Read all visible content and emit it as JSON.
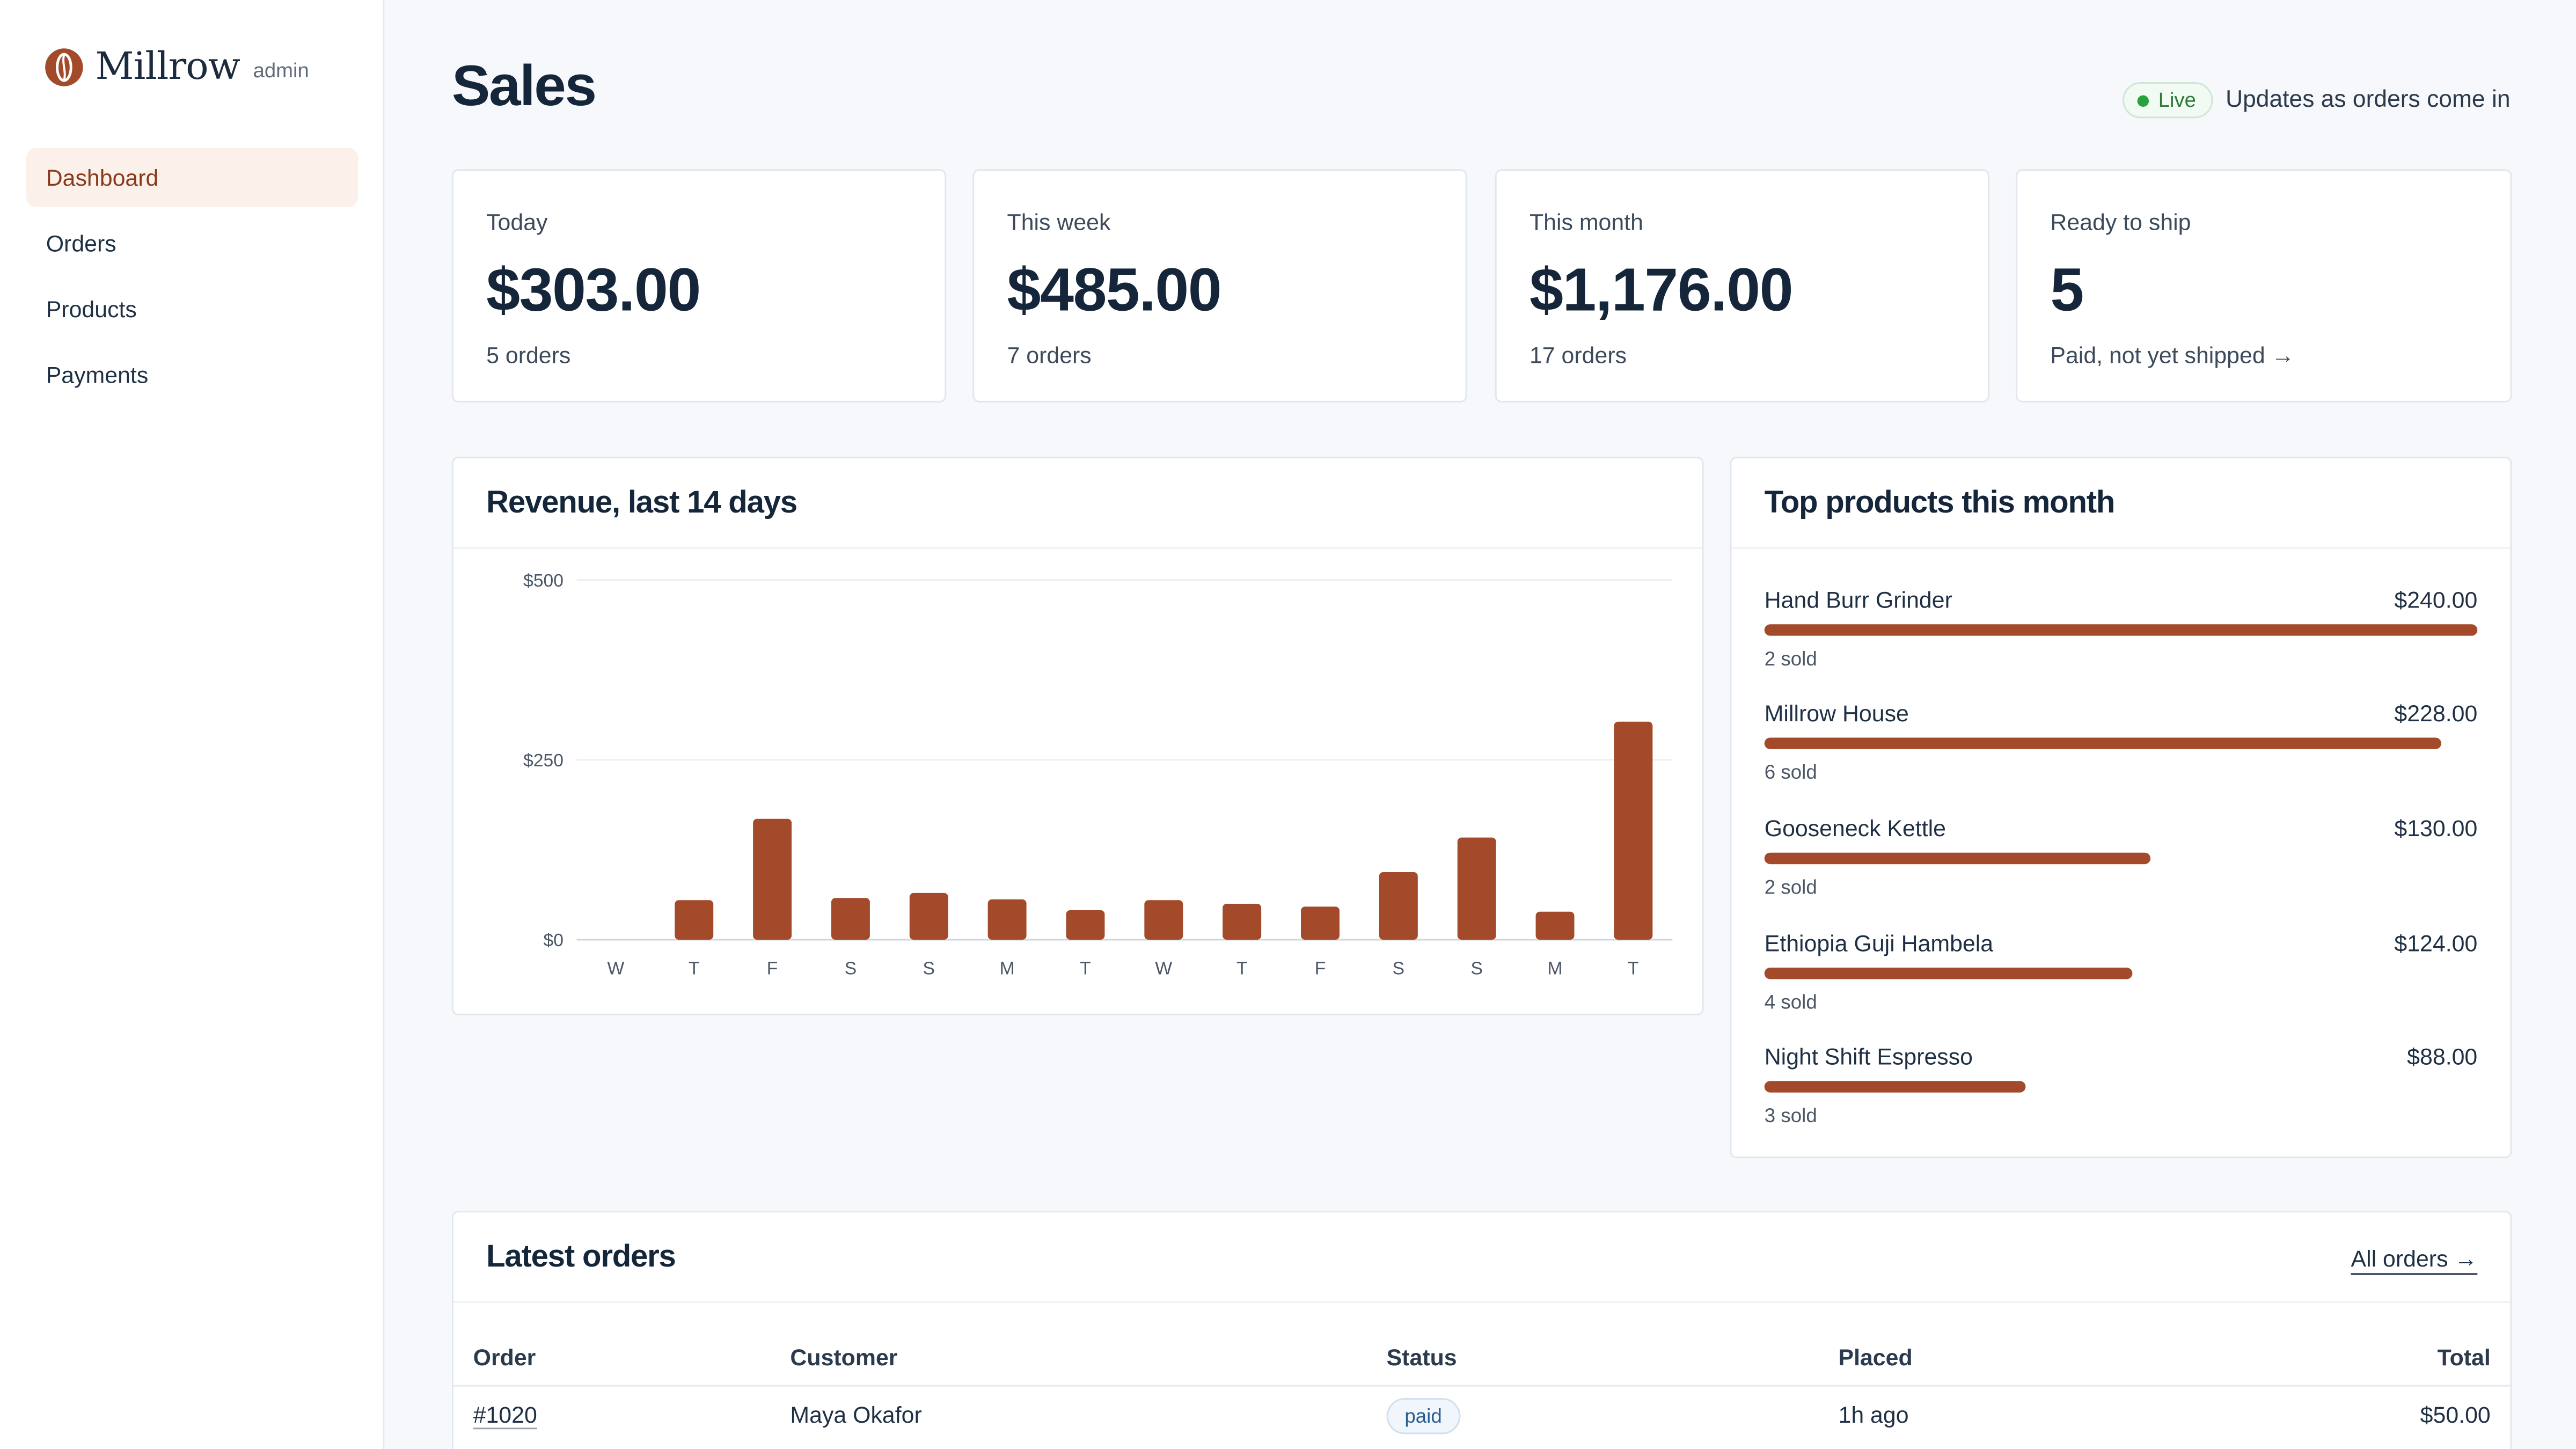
{
  "brand": {
    "name": "Millrow",
    "tag": "admin"
  },
  "nav": [
    {
      "label": "Dashboard",
      "active": true
    },
    {
      "label": "Orders",
      "active": false
    },
    {
      "label": "Products",
      "active": false
    },
    {
      "label": "Payments",
      "active": false
    }
  ],
  "page": {
    "title": "Sales",
    "live_label": "Live",
    "live_text": "Updates as orders come in"
  },
  "stats": [
    {
      "label": "Today",
      "value": "$303.00",
      "sub": "5 orders"
    },
    {
      "label": "This week",
      "value": "$485.00",
      "sub": "7 orders"
    },
    {
      "label": "This month",
      "value": "$1,176.00",
      "sub": "17 orders"
    },
    {
      "label": "Ready to ship",
      "value": "5",
      "sub": "Paid, not yet shipped →"
    }
  ],
  "revenue": {
    "title": "Revenue, last 14 days"
  },
  "chart_data": {
    "type": "bar",
    "title": "Revenue, last 14 days",
    "categories": [
      "W",
      "T",
      "F",
      "S",
      "S",
      "M",
      "T",
      "W",
      "T",
      "F",
      "S",
      "S",
      "M",
      "T"
    ],
    "values": [
      0,
      55,
      168,
      58,
      65,
      56,
      41,
      55,
      50,
      46,
      94,
      142,
      39,
      303
    ],
    "ylim": [
      0,
      500
    ],
    "yticks": [
      0,
      250,
      500
    ],
    "ytick_labels": [
      "$0",
      "$250",
      "$500"
    ],
    "grid": true,
    "color": "#a34a2b"
  },
  "top_products": {
    "title": "Top products this month",
    "max_value": 240,
    "items": [
      {
        "name": "Hand Burr Grinder",
        "value": "$240.00",
        "amount": 240,
        "sold": "2 sold"
      },
      {
        "name": "Millrow House",
        "value": "$228.00",
        "amount": 228,
        "sold": "6 sold"
      },
      {
        "name": "Gooseneck Kettle",
        "value": "$130.00",
        "amount": 130,
        "sold": "2 sold"
      },
      {
        "name": "Ethiopia Guji Hambela",
        "value": "$124.00",
        "amount": 124,
        "sold": "4 sold"
      },
      {
        "name": "Night Shift Espresso",
        "value": "$88.00",
        "amount": 88,
        "sold": "3 sold"
      }
    ]
  },
  "orders": {
    "title": "Latest orders",
    "link": "All orders →",
    "columns": [
      "Order",
      "Customer",
      "Status",
      "Placed",
      "Total"
    ],
    "rows": [
      {
        "order": "#1020",
        "customer": "Maya Okafor",
        "status": "paid",
        "placed": "1h ago",
        "total": "$50.00"
      }
    ]
  },
  "colors": {
    "accent": "#a34a2b",
    "active_nav_bg": "#fcf1ea",
    "live_green": "#27a33d",
    "text_dark": "#15263a"
  }
}
